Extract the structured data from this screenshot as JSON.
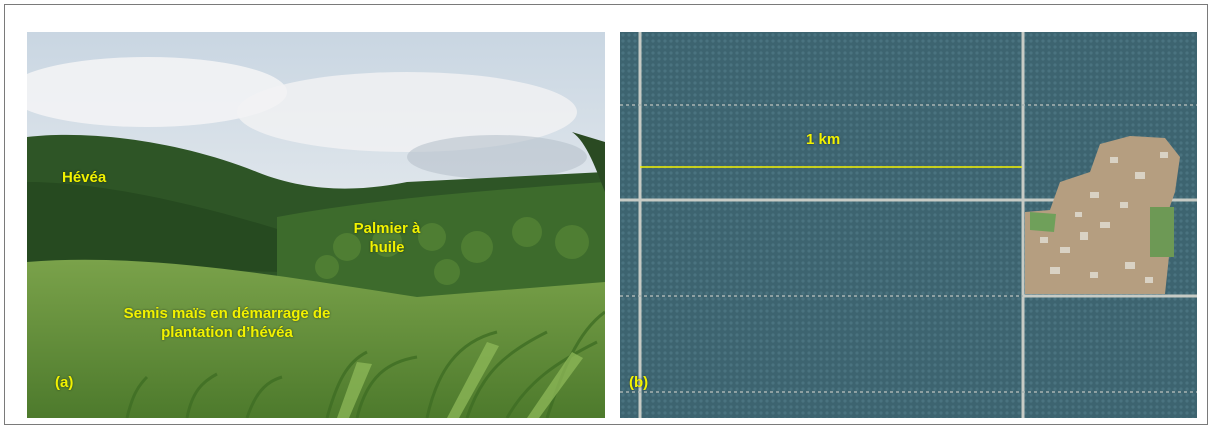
{
  "panel_a": {
    "labels": {
      "hevea": "Hévéa",
      "palmier_line1": "Palmier à",
      "palmier_line2": "huile",
      "semis_line1": "Semis maïs en démarrage de",
      "semis_line2": "plantation d’hévéa",
      "tag": "(a)"
    }
  },
  "panel_b": {
    "labels": {
      "scale": "1 km",
      "tag": "(b)"
    }
  },
  "colors": {
    "label_yellow": "#f2f200",
    "sky": "#dfe6ec",
    "forest": "#2f5a2a",
    "field": "#6f9a3f",
    "palm_grid": "#3f6670",
    "road": "#c9ccc6",
    "village": "#b39c7c"
  }
}
